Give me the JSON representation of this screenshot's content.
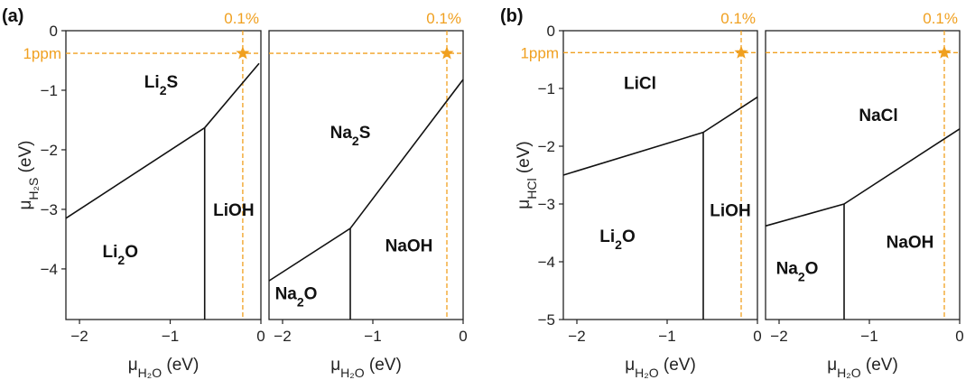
{
  "colors": {
    "boundary": "#111111",
    "reference": "#f0a020",
    "frame": "#222222"
  },
  "groups": [
    {
      "label": "(a)",
      "ylabel_main": "μ",
      "ylabel_sub": "H₂S",
      "ylabel_unit": " (eV)"
    },
    {
      "label": "(b)",
      "ylabel_main": "μ",
      "ylabel_sub": "HCl",
      "ylabel_unit": " (eV)"
    }
  ],
  "xlabel": {
    "main": "μ",
    "sub": "H₂O",
    "unit": " (eV)"
  },
  "chart_data": [
    {
      "type": "line",
      "group": 0,
      "xlim": [
        -2.15,
        0
      ],
      "ylim": [
        -4.85,
        0
      ],
      "xticks": [
        -2,
        -1,
        0
      ],
      "xtick_labels": [
        "−2",
        "−1",
        "0"
      ],
      "yticks": [
        0,
        -1,
        -2,
        -3,
        -4
      ],
      "ytick_labels": [
        "0",
        "−1",
        "−2",
        "−3",
        "−4"
      ],
      "boundaries": [
        [
          [
            -2.15,
            -3.15
          ],
          [
            -0.62,
            -1.63
          ]
        ],
        [
          [
            -0.62,
            -1.63
          ],
          [
            -0.02,
            -0.55
          ]
        ],
        [
          [
            -0.62,
            -1.63
          ],
          [
            -0.62,
            -4.85
          ]
        ]
      ],
      "regions": [
        {
          "name": "Li",
          "sub": "2",
          "rest": "S",
          "x": -1.1,
          "y": -0.85
        },
        {
          "name": "LiOH",
          "sub": "",
          "rest": "",
          "x": -0.3,
          "y": -3.0
        },
        {
          "name": "Li",
          "sub": "2",
          "rest": "O",
          "x": -1.55,
          "y": -3.7
        }
      ],
      "reference": {
        "x": -0.2,
        "y": -0.38,
        "x_label": "0.1%",
        "y_label": "1ppm"
      }
    },
    {
      "type": "line",
      "group": 0,
      "xlim": [
        -2.15,
        0
      ],
      "ylim": [
        -4.85,
        0
      ],
      "xticks": [
        -2,
        -1,
        0
      ],
      "xtick_labels": [
        "−2",
        "−1",
        "0"
      ],
      "yticks": [],
      "ytick_labels": [],
      "boundaries": [
        [
          [
            -2.15,
            -4.2
          ],
          [
            -1.25,
            -3.32
          ]
        ],
        [
          [
            -1.25,
            -3.32
          ],
          [
            0,
            -0.82
          ]
        ],
        [
          [
            -1.25,
            -3.32
          ],
          [
            -1.25,
            -4.85
          ]
        ]
      ],
      "regions": [
        {
          "name": "Na",
          "sub": "2",
          "rest": "S",
          "x": -1.25,
          "y": -1.7
        },
        {
          "name": "NaOH",
          "sub": "",
          "rest": "",
          "x": -0.6,
          "y": -3.6
        },
        {
          "name": "Na",
          "sub": "2",
          "rest": "O",
          "x": -1.85,
          "y": -4.4
        }
      ],
      "reference": {
        "x": -0.18,
        "y": -0.38,
        "x_label": "0.1%",
        "y_label": ""
      }
    },
    {
      "type": "line",
      "group": 1,
      "xlim": [
        -2.15,
        0
      ],
      "ylim": [
        -5,
        0
      ],
      "xticks": [
        -2,
        -1,
        0
      ],
      "xtick_labels": [
        "−2",
        "−1",
        "0"
      ],
      "yticks": [
        0,
        -1,
        -2,
        -3,
        -4,
        -5
      ],
      "ytick_labels": [
        "0",
        "−1",
        "−2",
        "−3",
        "−4",
        "−5"
      ],
      "boundaries": [
        [
          [
            -2.15,
            -2.5
          ],
          [
            -0.6,
            -1.76
          ]
        ],
        [
          [
            -0.6,
            -1.76
          ],
          [
            0,
            -1.15
          ]
        ],
        [
          [
            -0.6,
            -1.76
          ],
          [
            -0.6,
            -5
          ]
        ]
      ],
      "regions": [
        {
          "name": "LiCl",
          "sub": "",
          "rest": "",
          "x": -1.3,
          "y": -0.9
        },
        {
          "name": "LiOH",
          "sub": "",
          "rest": "",
          "x": -0.3,
          "y": -3.1
        },
        {
          "name": "Li",
          "sub": "2",
          "rest": "O",
          "x": -1.55,
          "y": -3.55
        }
      ],
      "reference": {
        "x": -0.18,
        "y": -0.38,
        "x_label": "0.1%",
        "y_label": "1ppm"
      }
    },
    {
      "type": "line",
      "group": 1,
      "xlim": [
        -2.15,
        0
      ],
      "ylim": [
        -5,
        0
      ],
      "xticks": [
        -2,
        -1,
        0
      ],
      "xtick_labels": [
        "−2",
        "−1",
        "0"
      ],
      "yticks": [],
      "ytick_labels": [],
      "boundaries": [
        [
          [
            -2.15,
            -3.38
          ],
          [
            -1.28,
            -3.0
          ]
        ],
        [
          [
            -1.28,
            -3.0
          ],
          [
            0,
            -1.7
          ]
        ],
        [
          [
            -1.28,
            -3.0
          ],
          [
            -1.28,
            -5
          ]
        ]
      ],
      "regions": [
        {
          "name": "NaCl",
          "sub": "",
          "rest": "",
          "x": -0.9,
          "y": -1.45
        },
        {
          "name": "NaOH",
          "sub": "",
          "rest": "",
          "x": -0.55,
          "y": -3.65
        },
        {
          "name": "Na",
          "sub": "2",
          "rest": "O",
          "x": -1.8,
          "y": -4.1
        }
      ],
      "reference": {
        "x": -0.17,
        "y": -0.38,
        "x_label": "0.1%",
        "y_label": ""
      }
    }
  ]
}
